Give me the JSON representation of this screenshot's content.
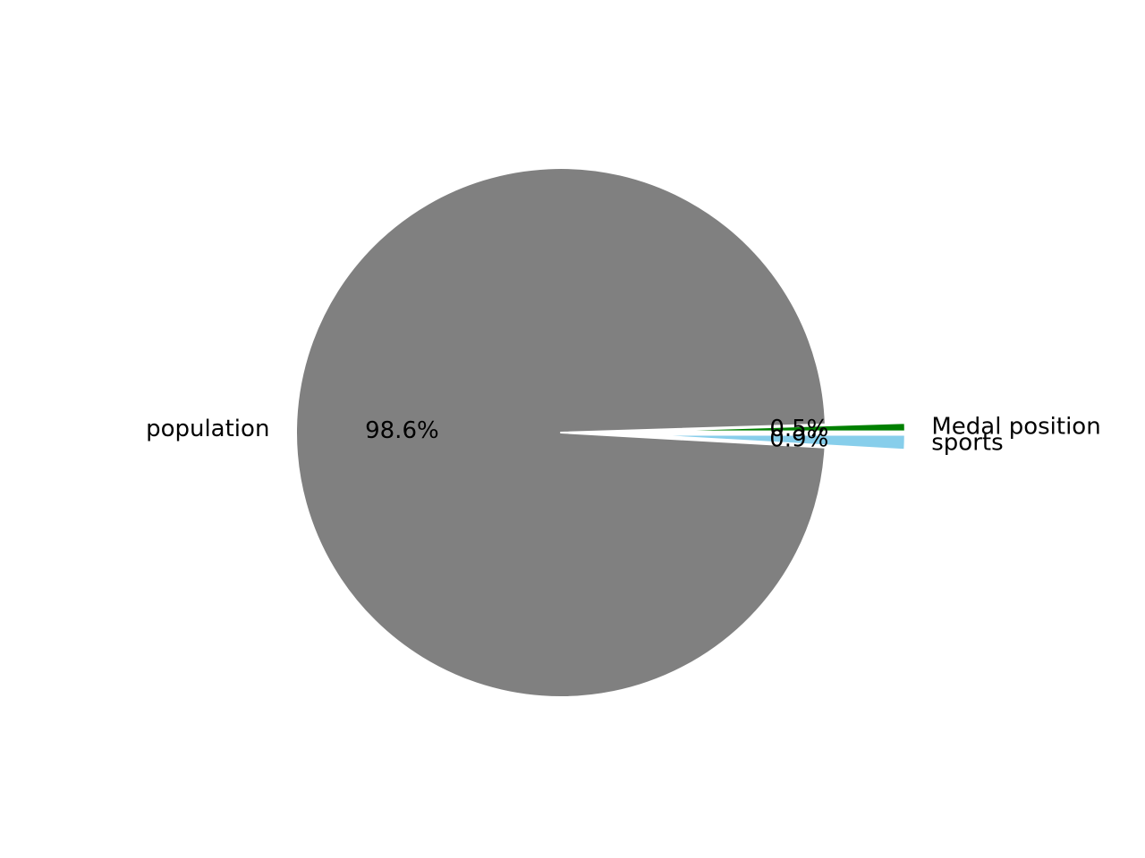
{
  "chart_data": {
    "type": "pie",
    "title": "",
    "slices": [
      {
        "label": "Medal position",
        "percent": 0.5,
        "percent_label": "0.5%",
        "color": "#008000",
        "exploded": true
      },
      {
        "label": "population",
        "percent": 98.6,
        "percent_label": "98.6%",
        "color": "#808080",
        "exploded": false
      },
      {
        "label": "sports",
        "percent": 0.9,
        "percent_label": "0.9%",
        "color": "#87ceeb",
        "exploded": true
      }
    ],
    "start_angle": 0,
    "direction": "counterclockwise",
    "legend": "none"
  }
}
